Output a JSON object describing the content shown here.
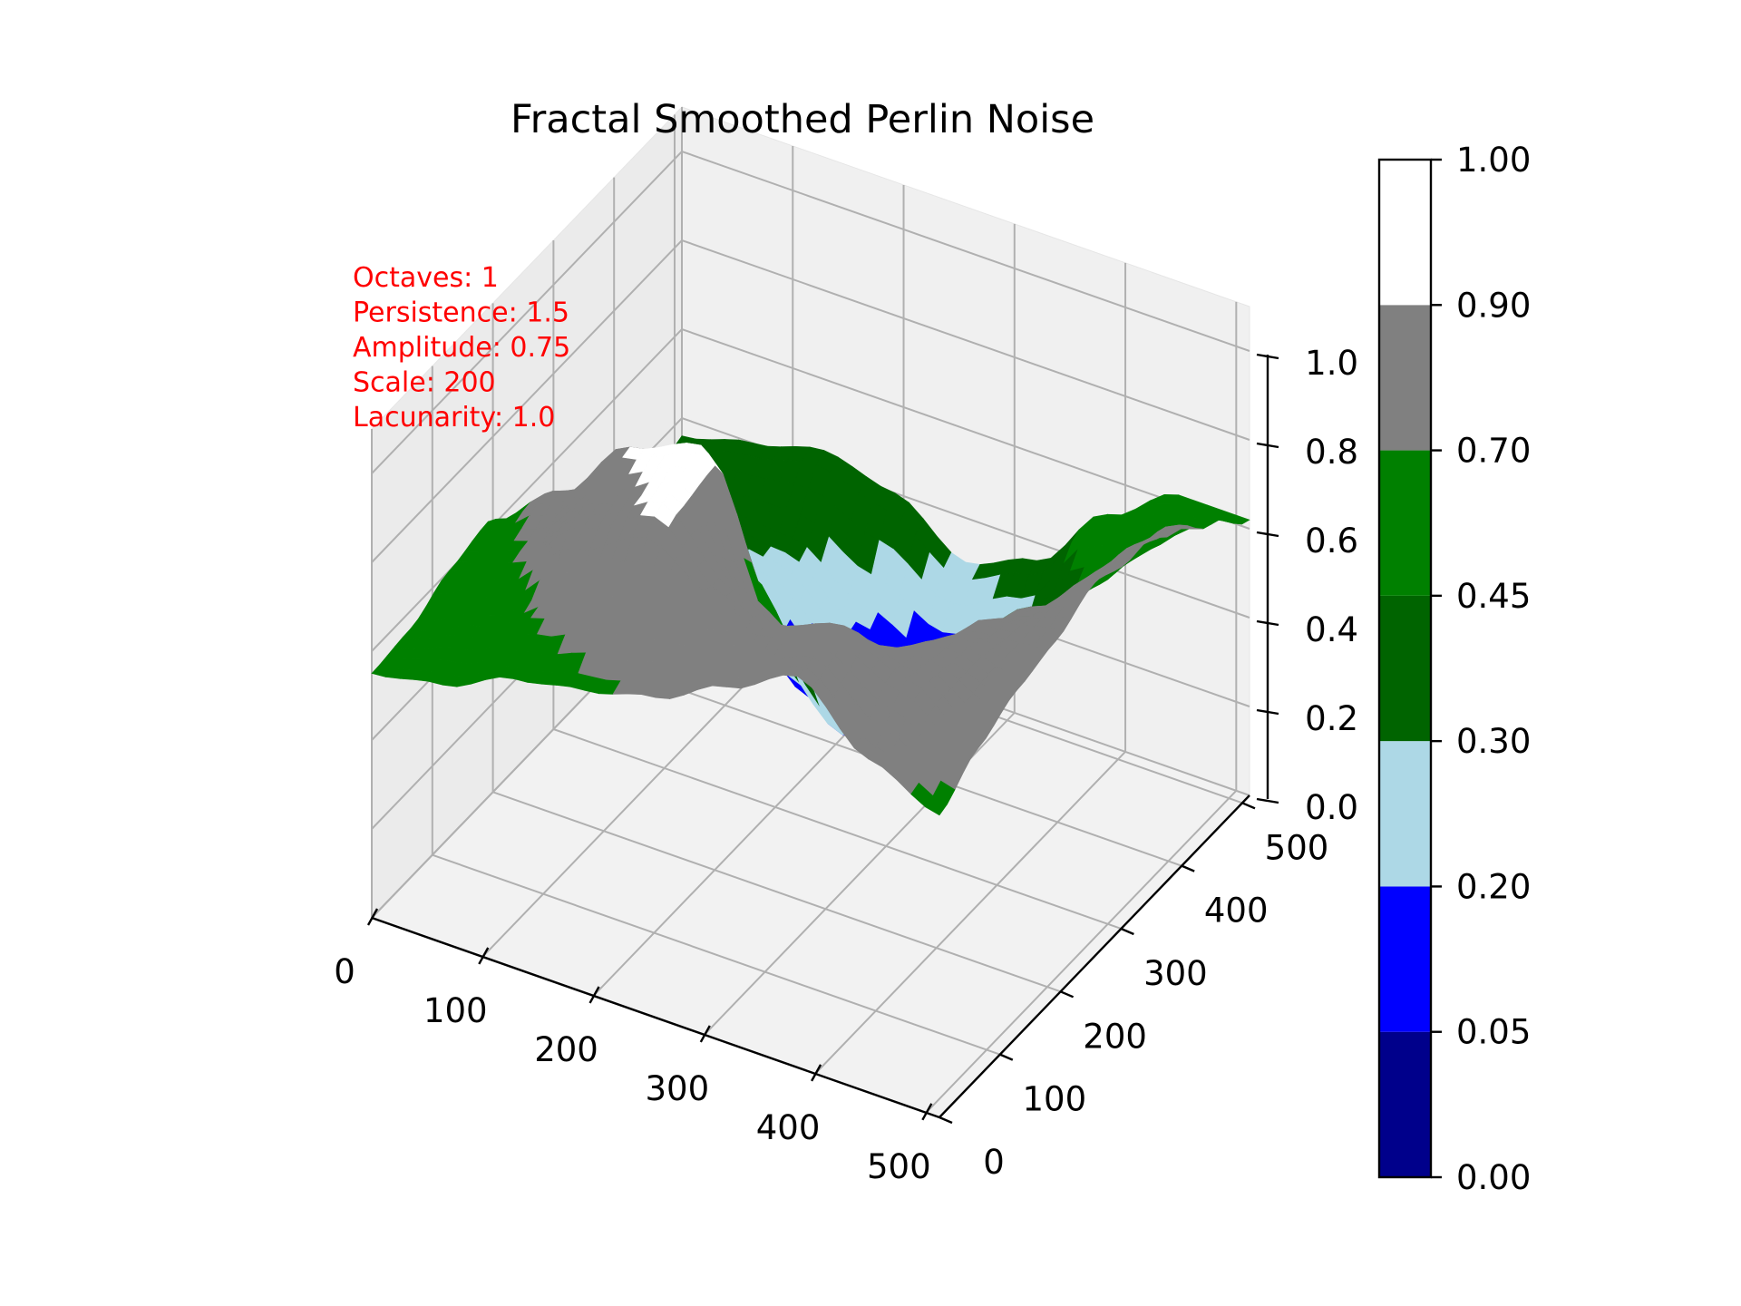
{
  "chart_data": {
    "type": "surface3d",
    "title": "Fractal Smoothed Perlin Noise",
    "annotations": [
      "Octaves: 1",
      "Persistence: 1.5",
      "Amplitude: 0.75",
      "Scale: 200",
      "Lacunarity: 1.0"
    ],
    "x_axis": {
      "ticks": [
        0,
        100,
        200,
        300,
        400,
        500
      ],
      "tick_labels": [
        "0",
        "100",
        "200",
        "300",
        "400",
        "500"
      ],
      "range": [
        0,
        512
      ]
    },
    "y_axis": {
      "ticks": [
        0,
        100,
        200,
        300,
        400,
        500
      ],
      "tick_labels": [
        "0",
        "100",
        "200",
        "300",
        "400",
        "500"
      ],
      "range": [
        0,
        512
      ]
    },
    "z_axis": {
      "ticks": [
        0.0,
        0.2,
        0.4,
        0.6,
        0.8,
        1.0
      ],
      "tick_labels": [
        "0.0",
        "0.2",
        "0.4",
        "0.6",
        "0.8",
        "1.0"
      ],
      "range": [
        0,
        1
      ]
    },
    "grid": true,
    "colorbar": {
      "position": "right",
      "boundaries": [
        0.0,
        0.05,
        0.2,
        0.3,
        0.45,
        0.7,
        0.9,
        1.0
      ],
      "tick_labels": [
        "0.00",
        "0.05",
        "0.20",
        "0.30",
        "0.45",
        "0.70",
        "0.90",
        "1.00"
      ],
      "colors": [
        "#00008b",
        "#0000ff",
        "#add8e6",
        "#006400",
        "#008000",
        "#808080",
        "#ffffff"
      ]
    },
    "surface_grid": {
      "x": [
        0,
        64,
        128,
        192,
        256,
        320,
        384,
        448,
        512
      ],
      "y": [
        0,
        64,
        128,
        192,
        256,
        320,
        384,
        448,
        512
      ],
      "z": [
        [
          0.55,
          0.58,
          0.65,
          0.68,
          0.72,
          0.8,
          0.88,
          0.75,
          0.68
        ],
        [
          0.56,
          0.62,
          0.72,
          0.8,
          0.82,
          0.85,
          0.9,
          0.84,
          0.74
        ],
        [
          0.6,
          0.7,
          0.84,
          0.92,
          0.78,
          0.7,
          0.76,
          0.82,
          0.78
        ],
        [
          0.62,
          0.74,
          0.9,
          0.96,
          0.62,
          0.55,
          0.66,
          0.78,
          0.8
        ],
        [
          0.5,
          0.62,
          0.7,
          0.6,
          0.4,
          0.38,
          0.55,
          0.72,
          0.84
        ],
        [
          0.35,
          0.42,
          0.42,
          0.3,
          0.18,
          0.25,
          0.45,
          0.65,
          0.82
        ],
        [
          0.28,
          0.3,
          0.25,
          0.12,
          0.06,
          0.18,
          0.4,
          0.62,
          0.78
        ],
        [
          0.3,
          0.32,
          0.3,
          0.2,
          0.14,
          0.22,
          0.42,
          0.6,
          0.7
        ],
        [
          0.36,
          0.4,
          0.44,
          0.4,
          0.3,
          0.36,
          0.52,
          0.62,
          0.62
        ]
      ]
    }
  }
}
